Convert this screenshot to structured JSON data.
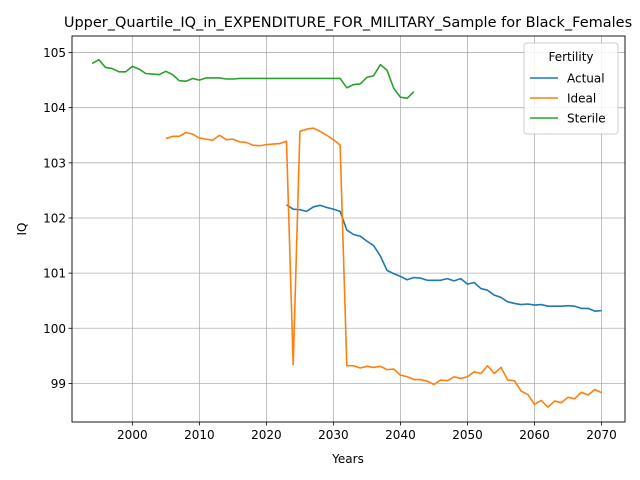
{
  "chart_data": {
    "type": "line",
    "title": "Upper_Quartile_IQ_in_EXPENDITURE_FOR_MILITARY_Sample for Black_Females",
    "xlabel": "Years",
    "ylabel": "IQ",
    "xlim": [
      1991,
      2073.5
    ],
    "ylim": [
      98.3,
      105.3
    ],
    "xticks": [
      2000,
      2010,
      2020,
      2030,
      2040,
      2050,
      2060,
      2070
    ],
    "yticks": [
      99,
      100,
      101,
      102,
      103,
      104,
      105
    ],
    "grid": true,
    "legend": {
      "title": "Fertility",
      "placement": "top-right"
    },
    "series": [
      {
        "name": "Actual",
        "color": "#1f77b4",
        "x": [
          2023,
          2024,
          2025,
          2026,
          2027,
          2028,
          2029,
          2030,
          2031,
          2032,
          2033,
          2034,
          2035,
          2036,
          2037,
          2038,
          2039,
          2040,
          2041,
          2042,
          2043,
          2044,
          2045,
          2046,
          2047,
          2048,
          2049,
          2050,
          2051,
          2052,
          2053,
          2054,
          2055,
          2056,
          2057,
          2058,
          2059,
          2060,
          2061,
          2062,
          2063,
          2064,
          2065,
          2066,
          2067,
          2068,
          2069,
          2070
        ],
        "y": [
          102.24,
          102.16,
          102.15,
          102.12,
          102.2,
          102.23,
          102.19,
          102.16,
          102.12,
          101.78,
          101.7,
          101.67,
          101.58,
          101.5,
          101.31,
          101.05,
          100.99,
          100.94,
          100.88,
          100.92,
          100.91,
          100.87,
          100.87,
          100.87,
          100.9,
          100.86,
          100.9,
          100.8,
          100.83,
          100.72,
          100.69,
          100.6,
          100.56,
          100.48,
          100.45,
          100.43,
          100.44,
          100.42,
          100.43,
          100.4,
          100.4,
          100.4,
          100.41,
          100.4,
          100.36,
          100.36,
          100.31,
          100.32
        ]
      },
      {
        "name": "Ideal",
        "color": "#ff7f0e",
        "x": [
          2005,
          2006,
          2007,
          2008,
          2009,
          2010,
          2011,
          2012,
          2013,
          2014,
          2015,
          2016,
          2017,
          2018,
          2019,
          2020,
          2021,
          2022,
          2023,
          2024,
          2025,
          2026,
          2027,
          2028,
          2029,
          2030,
          2031,
          2032,
          2033,
          2034,
          2035,
          2036,
          2037,
          2038,
          2039,
          2040,
          2041,
          2042,
          2043,
          2044,
          2045,
          2046,
          2047,
          2048,
          2049,
          2050,
          2051,
          2052,
          2053,
          2054,
          2055,
          2056,
          2057,
          2058,
          2059,
          2060,
          2061,
          2062,
          2063,
          2064,
          2065,
          2066,
          2067,
          2068,
          2069,
          2070
        ],
        "y": [
          103.44,
          103.48,
          103.48,
          103.55,
          103.52,
          103.45,
          103.43,
          103.41,
          103.5,
          103.42,
          103.43,
          103.38,
          103.37,
          103.32,
          103.31,
          103.33,
          103.34,
          103.35,
          103.39,
          99.34,
          103.57,
          103.61,
          103.63,
          103.57,
          103.5,
          103.42,
          103.32,
          99.32,
          99.32,
          99.28,
          99.31,
          99.29,
          99.31,
          99.25,
          99.26,
          99.15,
          99.12,
          99.07,
          99.07,
          99.04,
          98.98,
          99.06,
          99.05,
          99.12,
          99.09,
          99.12,
          99.21,
          99.18,
          99.32,
          99.18,
          99.29,
          99.06,
          99.05,
          98.86,
          98.8,
          98.62,
          98.69,
          98.57,
          98.68,
          98.65,
          98.75,
          98.72,
          98.84,
          98.79,
          98.89,
          98.83
        ]
      },
      {
        "name": "Sterile",
        "color": "#2ca02c",
        "x": [
          1994,
          1995,
          1996,
          1997,
          1998,
          1999,
          2000,
          2001,
          2002,
          2003,
          2004,
          2005,
          2006,
          2007,
          2008,
          2009,
          2010,
          2011,
          2012,
          2013,
          2014,
          2015,
          2016,
          2017,
          2018,
          2019,
          2020,
          2021,
          2022,
          2023,
          2024,
          2025,
          2026,
          2027,
          2028,
          2029,
          2030,
          2031,
          2032,
          2033,
          2034,
          2035,
          2036,
          2037,
          2038,
          2039,
          2040,
          2041,
          2042
        ],
        "y": [
          104.8,
          104.87,
          104.73,
          104.71,
          104.65,
          104.65,
          104.75,
          104.7,
          104.62,
          104.61,
          104.6,
          104.66,
          104.6,
          104.49,
          104.48,
          104.53,
          104.5,
          104.54,
          104.54,
          104.54,
          104.52,
          104.52,
          104.53,
          104.53,
          104.53,
          104.53,
          104.53,
          104.53,
          104.53,
          104.53,
          104.53,
          104.53,
          104.53,
          104.53,
          104.53,
          104.53,
          104.53,
          104.53,
          104.36,
          104.42,
          104.43,
          104.55,
          104.58,
          104.78,
          104.68,
          104.35,
          104.19,
          104.17,
          104.29
        ]
      }
    ]
  }
}
